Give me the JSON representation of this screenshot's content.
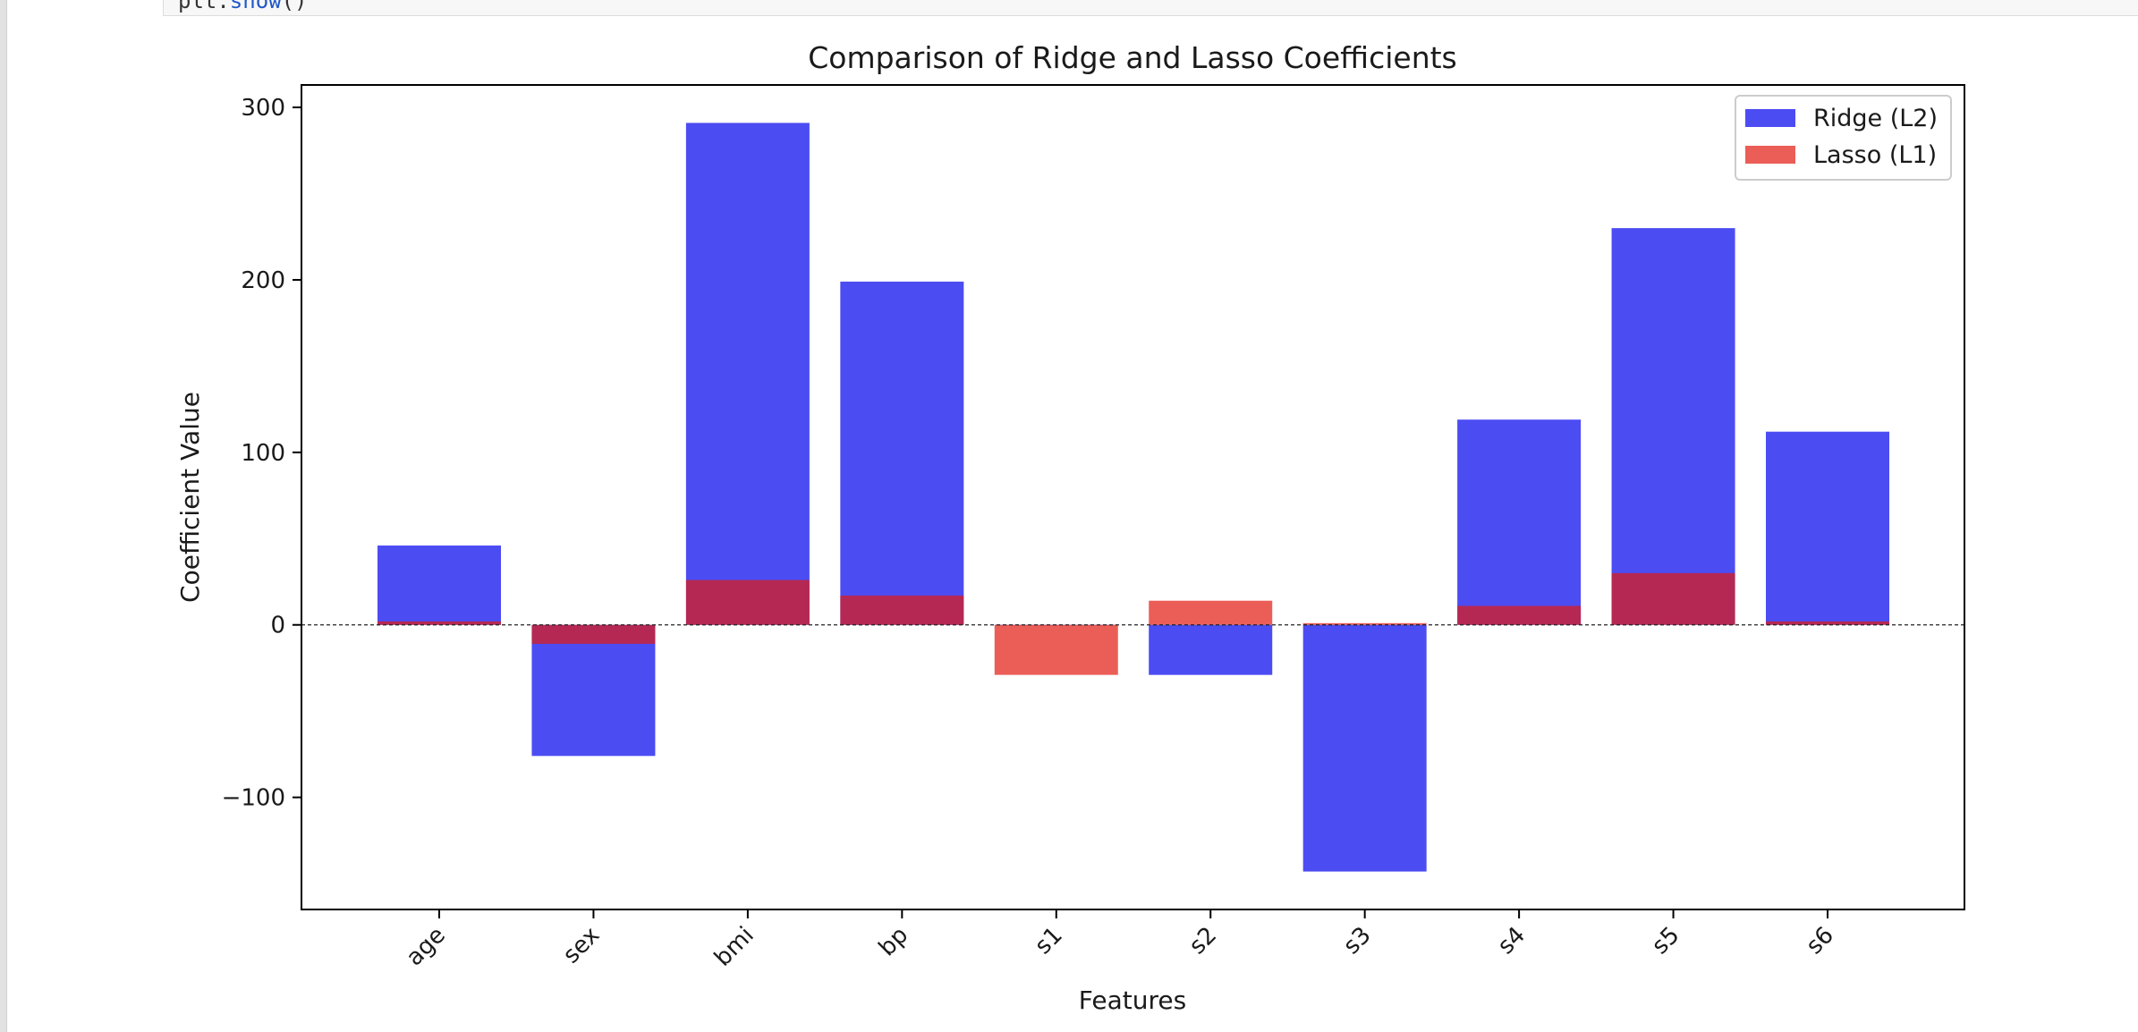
{
  "notebook": {
    "code_line_prefix": "plt.",
    "code_line_fn": "show",
    "code_line_suffix": "()"
  },
  "chart_data": {
    "type": "bar",
    "title": "Comparison of Ridge and Lasso Coefficients",
    "xlabel": "Features",
    "ylabel": "Coefficient Value",
    "categories": [
      "age",
      "sex",
      "bmi",
      "bp",
      "s1",
      "s2",
      "s3",
      "s4",
      "s5",
      "s6"
    ],
    "series": [
      {
        "name": "Ridge (L2)",
        "color": "#0000ee",
        "alpha": 0.7,
        "values": [
          46,
          -76,
          291,
          199,
          0,
          -29,
          -143,
          119,
          230,
          112
        ]
      },
      {
        "name": "Lasso (L1)",
        "color": "#e31a0f",
        "alpha": 0.7,
        "values": [
          2,
          -11,
          26,
          17,
          -29,
          14,
          1,
          11,
          30,
          2
        ]
      }
    ],
    "ylim": [
      -165,
      313
    ],
    "yticks": [
      -100,
      0,
      100,
      200,
      300
    ],
    "ytick_labels": [
      "−100",
      "0",
      "100",
      "200",
      "300"
    ],
    "zero_line": "dashed",
    "grid": false,
    "legend_position": "top-right",
    "xtick_rotation": 45
  }
}
